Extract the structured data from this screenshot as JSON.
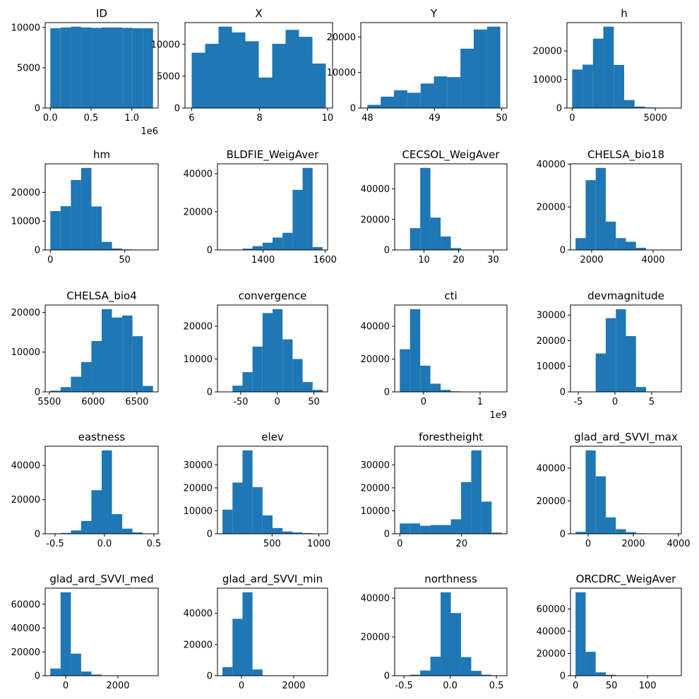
{
  "chart_data": [
    {
      "type": "histogram",
      "title": "ID",
      "color": "#1f77b4",
      "bins": [
        0,
        126000,
        252000,
        378000,
        504000,
        630000,
        756000,
        882000,
        1008000,
        1134000,
        1260000
      ],
      "counts": [
        9900,
        10000,
        10100,
        10000,
        9950,
        10000,
        10000,
        9950,
        9900,
        9900
      ],
      "xlim": [
        -63000,
        1323000
      ],
      "ylim": [
        0,
        10605
      ],
      "xticks": [
        {
          "value": 0,
          "label": "0.0"
        },
        {
          "value": 500000,
          "label": "0.5"
        },
        {
          "value": 1000000,
          "label": "1.0"
        }
      ],
      "x_offset_label": "1e6",
      "yticks": [
        0,
        5000,
        10000
      ]
    },
    {
      "type": "histogram",
      "title": "X",
      "color": "#1f77b4",
      "bins": [
        6.0,
        6.395,
        6.79,
        7.185,
        7.58,
        7.975,
        8.37,
        8.765,
        9.16,
        9.555,
        9.95
      ],
      "counts": [
        8700,
        10100,
        12800,
        11900,
        10500,
        4800,
        10100,
        12300,
        11200,
        7000
      ],
      "xlim": [
        5.8025,
        10.1475
      ],
      "ylim": [
        0,
        13440
      ],
      "xticks": [
        6,
        8,
        10
      ],
      "yticks": [
        0,
        5000,
        10000
      ]
    },
    {
      "type": "histogram",
      "title": "Y",
      "color": "#1f77b4",
      "bins": [
        48.0,
        48.198,
        48.396,
        48.594,
        48.792,
        48.99,
        49.188,
        49.386,
        49.584,
        49.782,
        49.98
      ],
      "counts": [
        900,
        3200,
        5000,
        4300,
        6900,
        8900,
        8700,
        16700,
        22100,
        22900
      ],
      "xlim": [
        47.901,
        50.079
      ],
      "ylim": [
        0,
        24045
      ],
      "xticks": [
        48,
        49,
        50
      ],
      "yticks": [
        0,
        10000,
        20000
      ]
    },
    {
      "type": "histogram",
      "title": "h",
      "color": "#1f77b4",
      "bins": [
        0,
        625,
        1250,
        1875,
        2500,
        3125,
        3750,
        4375,
        5000,
        5625,
        6250
      ],
      "counts": [
        13500,
        15200,
        24300,
        28500,
        15100,
        2800,
        500,
        200,
        50,
        10
      ],
      "xlim": [
        -312.5,
        6562.5
      ],
      "ylim": [
        0,
        29925
      ],
      "xticks": [
        0,
        5000
      ],
      "yticks": [
        0,
        10000,
        20000
      ]
    },
    {
      "type": "histogram",
      "title": "hm",
      "color": "#1f77b4",
      "bins": [
        0,
        6.9,
        13.8,
        20.7,
        27.6,
        34.5,
        41.4,
        48.3,
        55.2,
        62.1,
        69
      ],
      "counts": [
        13500,
        15200,
        24300,
        28500,
        15100,
        2800,
        500,
        200,
        50,
        10
      ],
      "xlim": [
        -3.45,
        72.45
      ],
      "ylim": [
        0,
        29925
      ],
      "xticks": [
        0,
        50
      ],
      "yticks": [
        0,
        10000,
        20000
      ]
    },
    {
      "type": "histogram",
      "title": "BLDFIE_WeigAver",
      "color": "#1f77b4",
      "bins": [
        1269,
        1301.3,
        1333.6,
        1365.9,
        1398.2,
        1430.5,
        1462.8,
        1495.1,
        1527.4,
        1559.7,
        1592
      ],
      "counts": [
        10,
        50,
        700,
        2000,
        3800,
        6500,
        9000,
        31500,
        43000,
        1500
      ],
      "xlim": [
        1252.85,
        1608.15
      ],
      "ylim": [
        0,
        45150
      ],
      "xticks": [
        1400,
        1600
      ],
      "yticks": [
        0,
        20000,
        40000
      ]
    },
    {
      "type": "histogram",
      "title": "CECSOL_WeigAver",
      "color": "#1f77b4",
      "bins": [
        3,
        5.95,
        8.9,
        11.85,
        14.8,
        17.75,
        20.7,
        23.65,
        26.6,
        29.55,
        32.5
      ],
      "counts": [
        50,
        14300,
        53800,
        21200,
        8800,
        1200,
        200,
        50,
        10,
        5
      ],
      "xlim": [
        1.525,
        33.975
      ],
      "ylim": [
        0,
        56490
      ],
      "xticks": [
        10,
        20,
        30
      ],
      "yticks": [
        0,
        20000,
        40000
      ]
    },
    {
      "type": "histogram",
      "title": "CHELSA_bio18",
      "color": "#1f77b4",
      "bins": [
        1474,
        1802.2,
        2130.4,
        2458.6,
        2786.8,
        3115,
        3443.2,
        3771.4,
        4099.6,
        4427.8,
        4756
      ],
      "counts": [
        5500,
        32500,
        38200,
        13200,
        5500,
        3800,
        1000,
        150,
        30,
        10
      ],
      "xlim": [
        1309.9,
        4920.1
      ],
      "ylim": [
        0,
        40110
      ],
      "xticks": [
        2000,
        4000
      ],
      "yticks": [
        0,
        20000,
        40000
      ]
    },
    {
      "type": "histogram",
      "title": "CHELSA_bio4",
      "color": "#1f77b4",
      "bins": [
        5511,
        5628.3,
        5745.6,
        5862.9,
        5980.2,
        6097.5,
        6214.8,
        6332.1,
        6449.4,
        6566.7,
        6684
      ],
      "counts": [
        300,
        1200,
        3800,
        7500,
        12800,
        20800,
        18700,
        19200,
        14000,
        1500
      ],
      "xlim": [
        5452.35,
        6742.65
      ],
      "ylim": [
        0,
        21840
      ],
      "xticks": [
        5500,
        6000,
        6500
      ],
      "yticks": [
        0,
        10000,
        20000
      ]
    },
    {
      "type": "histogram",
      "title": "convergence",
      "color": "#1f77b4",
      "bins": [
        -75,
        -61.3,
        -47.6,
        -33.9,
        -20.2,
        -6.5,
        7.2,
        20.9,
        34.6,
        48.3,
        62
      ],
      "counts": [
        100,
        1900,
        6000,
        13800,
        24000,
        25200,
        16000,
        10000,
        3000,
        600
      ],
      "xlim": [
        -81.85,
        68.85
      ],
      "ylim": [
        0,
        26460
      ],
      "xticks": [
        -50,
        0,
        50
      ],
      "yticks": [
        0,
        10000,
        20000
      ]
    },
    {
      "type": "histogram",
      "title": "cti",
      "color": "#1f77b4",
      "bins": [
        -420000000,
        -239500000,
        -59000000,
        121500000,
        302000000,
        482500000,
        663000000,
        843500000,
        1024000000,
        1204500000,
        1385000000
      ],
      "counts": [
        26000,
        50500,
        16000,
        5000,
        1200,
        300,
        100,
        30,
        10,
        5
      ],
      "xlim": [
        -510250000,
        1475250000
      ],
      "ylim": [
        0,
        53025
      ],
      "xticks": [
        0,
        {
          "value": 1000000000,
          "label": "1"
        }
      ],
      "x_offset_label": "1e9",
      "yticks": [
        0,
        20000,
        40000
      ]
    },
    {
      "type": "histogram",
      "title": "devmagnitude",
      "color": "#1f77b4",
      "bins": [
        -5.37,
        -3.997,
        -2.624,
        -1.251,
        0.122,
        1.495,
        2.868,
        4.241,
        5.614,
        6.987,
        8.36
      ],
      "counts": [
        10,
        50,
        15000,
        28800,
        32300,
        21800,
        1900,
        100,
        20,
        5
      ],
      "xlim": [
        -6.0565,
        9.0465
      ],
      "ylim": [
        0,
        33915
      ],
      "xticks": [
        -5,
        0,
        5
      ],
      "yticks": [
        0,
        10000,
        20000,
        30000
      ]
    },
    {
      "type": "histogram",
      "title": "eastness",
      "color": "#1f77b4",
      "bins": [
        -0.548,
        -0.4441,
        -0.3402,
        -0.2363,
        -0.1324,
        -0.0285,
        0.0754,
        0.1793,
        0.2832,
        0.3871,
        0.491
      ],
      "counts": [
        100,
        500,
        2000,
        7500,
        25500,
        48800,
        11500,
        3000,
        800,
        200
      ],
      "xlim": [
        -0.59995,
        0.54295
      ],
      "ylim": [
        0,
        51240
      ],
      "xticks": [
        -0.5,
        {
          "value": 0,
          "label": "0.0"
        },
        0.5
      ],
      "yticks": [
        0,
        20000,
        40000
      ]
    },
    {
      "type": "histogram",
      "title": "elev",
      "color": "#1f77b4",
      "bins": [
        -30,
        77,
        184,
        291,
        398,
        505,
        612,
        719,
        826,
        933,
        1040
      ],
      "counts": [
        10500,
        22300,
        36300,
        20300,
        8000,
        2500,
        1000,
        600,
        300,
        100
      ],
      "xlim": [
        -83.5,
        1093.5
      ],
      "ylim": [
        0,
        38115
      ],
      "xticks": [
        500,
        1000
      ],
      "yticks": [
        0,
        10000,
        20000,
        30000
      ]
    },
    {
      "type": "histogram",
      "title": "forestheight",
      "color": "#1f77b4",
      "bins": [
        0,
        3.3,
        6.6,
        9.9,
        13.2,
        16.5,
        19.8,
        23.1,
        26.4,
        29.7,
        33
      ],
      "counts": [
        4500,
        4500,
        3500,
        3800,
        3800,
        6300,
        22500,
        36300,
        14000,
        500
      ],
      "xlim": [
        -1.65,
        34.65
      ],
      "ylim": [
        0,
        38115
      ],
      "xticks": [
        0,
        20
      ],
      "yticks": [
        0,
        10000,
        20000,
        30000
      ]
    },
    {
      "type": "histogram",
      "title": "glad_ard_SVVI_max",
      "color": "#1f77b4",
      "bins": [
        -558,
        -112,
        334,
        780,
        1226,
        1672,
        2118,
        2564,
        3010,
        3456,
        3902
      ],
      "counts": [
        1200,
        50800,
        35000,
        10000,
        2800,
        1000,
        300,
        100,
        30,
        10
      ],
      "xlim": [
        -781,
        4125
      ],
      "ylim": [
        0,
        53340
      ],
      "xticks": [
        0,
        2000,
        4000
      ],
      "yticks": [
        0,
        20000,
        40000
      ]
    },
    {
      "type": "histogram",
      "title": "glad_ard_SVVI_med",
      "color": "#1f77b4",
      "bins": [
        -587,
        -193.9,
        199.2,
        592.3,
        985.4,
        1378.5,
        1771.6,
        2164.7,
        2557.8,
        2950.9,
        3344
      ],
      "counts": [
        6000,
        70000,
        18500,
        3500,
        1000,
        200,
        50,
        10,
        5,
        2
      ],
      "xlim": [
        -783.55,
        3540.55
      ],
      "ylim": [
        0,
        73500
      ],
      "xticks": [
        0,
        2000
      ],
      "yticks": [
        0,
        20000,
        40000,
        60000
      ]
    },
    {
      "type": "histogram",
      "title": "glad_ard_SVVI_min",
      "color": "#1f77b4",
      "bins": [
        -727,
        -343.7,
        39.6,
        422.9,
        806.2,
        1189.5,
        1572.8,
        1956.1,
        2339.4,
        2722.7,
        3106
      ],
      "counts": [
        5500,
        36500,
        53500,
        4000,
        200,
        50,
        10,
        5,
        2,
        1
      ],
      "xlim": [
        -918.65,
        3297.65
      ],
      "ylim": [
        0,
        56175
      ],
      "xticks": [
        0,
        2000
      ],
      "yticks": [
        0,
        20000,
        40000
      ]
    },
    {
      "type": "histogram",
      "title": "northness",
      "color": "#1f77b4",
      "bins": [
        -0.545,
        -0.4346,
        -0.3242,
        -0.2138,
        -0.1034,
        0.007,
        0.1174,
        0.2278,
        0.3382,
        0.4486,
        0.559
      ],
      "counts": [
        100,
        500,
        2700,
        9800,
        43000,
        32300,
        9600,
        2500,
        500,
        100
      ],
      "xlim": [
        -0.6002,
        0.6142
      ],
      "ylim": [
        0,
        45150
      ],
      "xticks": [
        -0.5,
        {
          "value": 0,
          "label": "0.0"
        },
        0.5
      ],
      "yticks": [
        0,
        20000,
        40000
      ]
    },
    {
      "type": "histogram",
      "title": "ORCDRC_WeigAver",
      "color": "#1f77b4",
      "bins": [
        0,
        14,
        28,
        42,
        56,
        70,
        84,
        98,
        112,
        126,
        140
      ],
      "counts": [
        75000,
        21500,
        3000,
        800,
        200,
        50,
        20,
        10,
        5,
        2
      ],
      "xlim": [
        -7,
        147
      ],
      "ylim": [
        0,
        78750
      ],
      "xticks": [
        0,
        50,
        100
      ],
      "yticks": [
        0,
        20000,
        40000,
        60000
      ]
    }
  ]
}
